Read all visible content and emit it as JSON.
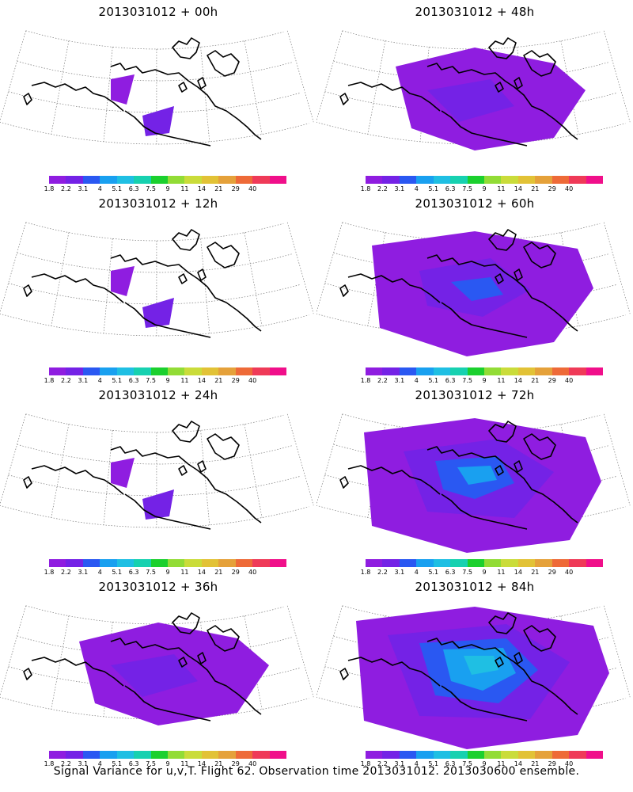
{
  "colorbar": {
    "labels": [
      "1.8",
      "2.2",
      "3.1",
      "4",
      "5.1",
      "6.3",
      "7.5",
      "9",
      "11",
      "14",
      "21",
      "29",
      "40"
    ],
    "colors": [
      "#8f1de0",
      "#7422e6",
      "#2a58f2",
      "#19a0f0",
      "#1fbfe3",
      "#17d1b0",
      "#1bd02e",
      "#92dc36",
      "#cadc3a",
      "#e2c236",
      "#e5a13a",
      "#ee6a38",
      "#ef3a58",
      "#f00f8a"
    ]
  },
  "map_colors": {
    "land_outline": "#000000",
    "graticule": "#7a7a7a"
  },
  "panels": [
    {
      "title": "2013031012 + 00h",
      "level": 0
    },
    {
      "title": "2013031012 + 48h",
      "level": 1
    },
    {
      "title": "2013031012 + 12h",
      "level": 0
    },
    {
      "title": "2013031012 + 60h",
      "level": 2
    },
    {
      "title": "2013031012 + 24h",
      "level": 0
    },
    {
      "title": "2013031012 + 72h",
      "level": 3
    },
    {
      "title": "2013031012 + 36h",
      "level": 1
    },
    {
      "title": "2013031012 + 84h",
      "level": 4
    }
  ],
  "footer": "Signal Variance for u,v,T. Flight 62. Observation time 2013031012. 2013030600 ensemble."
}
